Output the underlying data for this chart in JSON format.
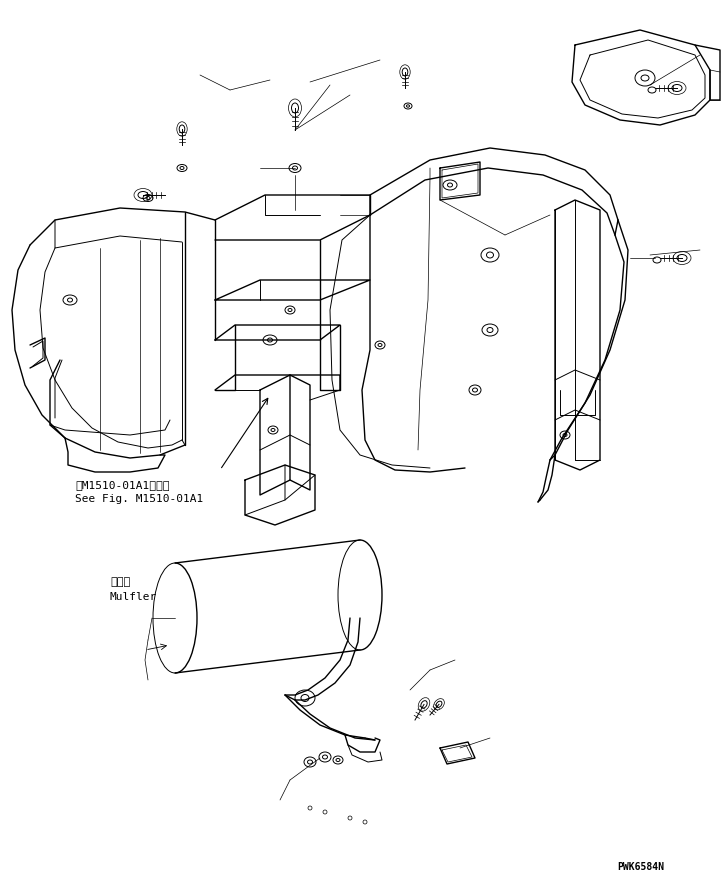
{
  "bg_color": "#ffffff",
  "line_color": "#000000",
  "figure_code": "PWK6584N",
  "annotation1_jp": "笮M1510-01A1図参照",
  "annotation1_en": "See Fig. M1510-01A1",
  "annotation2_jp": "マフラ",
  "annotation2_en": "Mulfler",
  "lw_main": 1.0,
  "lw_inner": 0.7,
  "lw_thin": 0.5,
  "font_size_annot": 8,
  "font_size_code": 7
}
